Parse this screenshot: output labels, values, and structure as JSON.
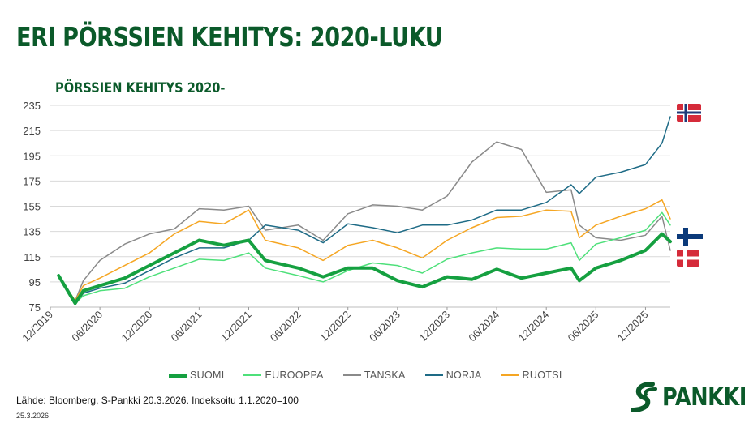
{
  "header": {
    "title": "ERI PÖRSSIEN KEHITYS: 2020-LUKU",
    "subtitle": "PÖRSSIEN KEHITYS 2020-"
  },
  "footer": {
    "source": "Lähde: Bloomberg, S-Pankki 20.3.2026. Indeksoitu 1.1.2020=100",
    "date": "25.3.2026",
    "logo_text": "PANKKI"
  },
  "flags": [
    {
      "name": "Norja",
      "icon": "norway-flag-icon"
    },
    {
      "name": "Suomi",
      "icon": "finland-flag-icon"
    },
    {
      "name": "Tanska",
      "icon": "denmark-flag-icon"
    }
  ],
  "chart_data": {
    "type": "line",
    "title": "PÖRSSIEN KEHITYS 2020-",
    "xlabel": "",
    "ylabel": "",
    "ylim": [
      75,
      235
    ],
    "yticks": [
      75,
      95,
      115,
      135,
      155,
      175,
      195,
      215,
      235
    ],
    "xticks": [
      "12/2019",
      "06/2020",
      "12/2020",
      "06/2021",
      "12/2021",
      "06/2022",
      "12/2022",
      "06/2023",
      "12/2023",
      "06/2024",
      "12/2024",
      "06/2025",
      "12/2025"
    ],
    "grid": true,
    "legend_position": "bottom",
    "x": [
      "2020-01",
      "2020-03",
      "2020-04",
      "2020-06",
      "2020-09",
      "2020-12",
      "2021-03",
      "2021-06",
      "2021-09",
      "2021-12",
      "2022-02",
      "2022-06",
      "2022-09",
      "2022-12",
      "2023-03",
      "2023-06",
      "2023-09",
      "2023-12",
      "2024-03",
      "2024-06",
      "2024-09",
      "2024-12",
      "2025-03",
      "2025-04",
      "2025-06",
      "2025-09",
      "2025-12",
      "2026-02",
      "2026-03"
    ],
    "series": [
      {
        "name": "SUOMI",
        "color": "#15a040",
        "width": 4,
        "values": [
          100,
          78,
          88,
          92,
          98,
          108,
          118,
          128,
          124,
          128,
          112,
          106,
          99,
          106,
          106,
          96,
          91,
          99,
          97,
          105,
          98,
          102,
          106,
          96,
          106,
          112,
          120,
          133,
          127
        ]
      },
      {
        "name": "EUROOPPA",
        "color": "#4ee07a",
        "width": 1.5,
        "values": [
          100,
          78,
          84,
          88,
          90,
          99,
          106,
          113,
          112,
          118,
          106,
          100,
          95,
          104,
          110,
          108,
          102,
          113,
          118,
          122,
          121,
          121,
          126,
          112,
          125,
          130,
          136,
          150,
          140
        ]
      },
      {
        "name": "TANSKA",
        "color": "#8a8a8a",
        "width": 1.5,
        "values": [
          100,
          80,
          96,
          112,
          125,
          133,
          137,
          153,
          152,
          155,
          136,
          140,
          128,
          149,
          156,
          155,
          152,
          163,
          190,
          206,
          200,
          166,
          168,
          140,
          130,
          128,
          132,
          147,
          120
        ]
      },
      {
        "name": "NORJA",
        "color": "#1e6b86",
        "width": 1.5,
        "values": [
          100,
          77,
          86,
          90,
          94,
          104,
          114,
          122,
          122,
          128,
          140,
          136,
          126,
          141,
          138,
          134,
          140,
          140,
          144,
          152,
          152,
          158,
          172,
          165,
          178,
          182,
          188,
          205,
          226
        ]
      },
      {
        "name": "RUOTSI",
        "color": "#f5a623",
        "width": 1.5,
        "values": [
          100,
          80,
          92,
          98,
          108,
          118,
          133,
          143,
          141,
          152,
          128,
          122,
          112,
          124,
          128,
          122,
          114,
          128,
          138,
          146,
          147,
          152,
          151,
          130,
          140,
          147,
          153,
          160,
          145
        ]
      }
    ]
  }
}
